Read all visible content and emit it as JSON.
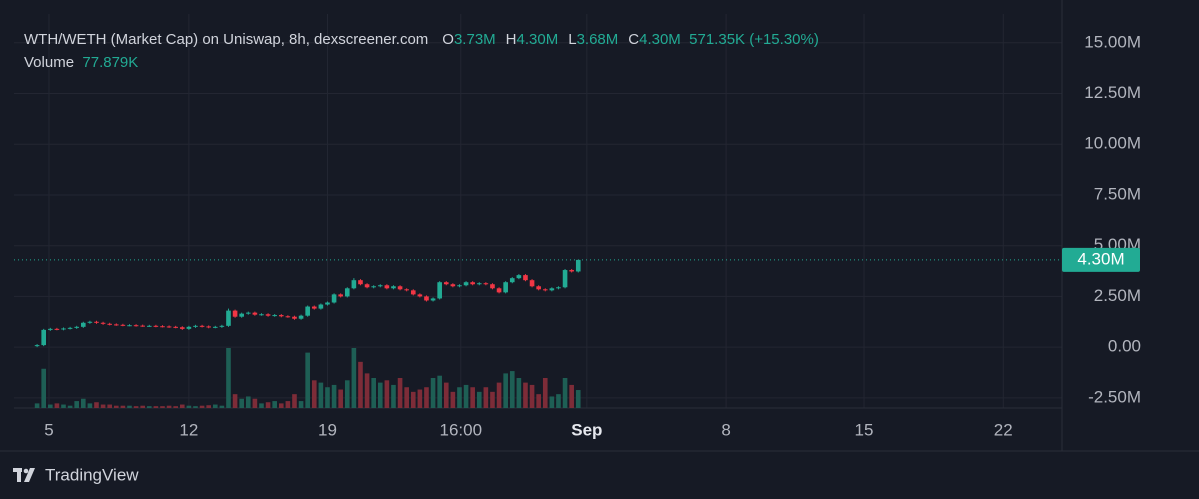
{
  "header": {
    "title": "WTH/WETH (Market Cap) on Uniswap, 8h, dexscreener.com",
    "items": [
      {
        "key": "O",
        "value": "3.73M"
      },
      {
        "key": "H",
        "value": "4.30M"
      },
      {
        "key": "L",
        "value": "3.68M"
      },
      {
        "key": "C",
        "value": "4.30M"
      }
    ],
    "change": "571.35K (+15.30%)",
    "volume_key": "Volume",
    "volume_value": "77.879K"
  },
  "chart_data": {
    "type": "candlestick",
    "up_color": "#22ab94",
    "down_color": "#f23645",
    "volume_up_color": "#1e5f55",
    "volume_down_color": "#7d2c38",
    "xlim": [
      -3.5,
      155.3
    ],
    "xticks": [
      {
        "value": 1.8,
        "label": "5"
      },
      {
        "value": 23,
        "label": "12"
      },
      {
        "value": 44,
        "label": "19"
      },
      {
        "value": 64.2,
        "label": "16:00"
      },
      {
        "value": 83.3,
        "label": "Sep",
        "bold": true
      },
      {
        "value": 104.4,
        "label": "8"
      },
      {
        "value": 125.3,
        "label": "15"
      },
      {
        "value": 146.4,
        "label": "22"
      }
    ],
    "ylim": [
      -3.0,
      16.42
    ],
    "yticks": [
      {
        "value": 15,
        "label": "15.00M"
      },
      {
        "value": 12.5,
        "label": "12.50M"
      },
      {
        "value": 10,
        "label": "10.00M"
      },
      {
        "value": 7.5,
        "label": "7.50M"
      },
      {
        "value": 5,
        "label": "5.00M"
      },
      {
        "value": 2.5,
        "label": "2.50M"
      },
      {
        "value": 0,
        "label": "0.00"
      },
      {
        "value": -2.5,
        "label": "-2.50M"
      }
    ],
    "grid": true,
    "last_label": "4.30M",
    "open": [
      0.05,
      0.1,
      0.85,
      0.9,
      0.88,
      0.92,
      0.95,
      1.0,
      1.2,
      1.25,
      1.2,
      1.15,
      1.12,
      1.1,
      1.08,
      1.08,
      1.06,
      1.05,
      1.05,
      1.03,
      1.02,
      1.0,
      0.98,
      0.9,
      1.0,
      1.05,
      1.02,
      0.98,
      1.0,
      1.05,
      1.8,
      1.5,
      1.65,
      1.7,
      1.6,
      1.62,
      1.55,
      1.58,
      1.52,
      1.5,
      1.4,
      1.55,
      2.0,
      1.9,
      2.1,
      2.2,
      2.6,
      2.5,
      2.9,
      3.3,
      3.1,
      2.95,
      3.0,
      3.05,
      2.9,
      3.0,
      2.85,
      2.8,
      2.6,
      2.5,
      2.3,
      2.4,
      3.2,
      3.1,
      3.0,
      3.05,
      3.2,
      3.1,
      3.15,
      3.1,
      2.9,
      2.7,
      3.2,
      3.4,
      3.55,
      3.3,
      3.0,
      2.85,
      2.8,
      2.9,
      2.95,
      3.8,
      3.73
    ],
    "high": [
      0.15,
      0.9,
      0.95,
      0.95,
      0.97,
      1.0,
      1.05,
      1.25,
      1.3,
      1.3,
      1.25,
      1.2,
      1.17,
      1.15,
      1.13,
      1.13,
      1.11,
      1.1,
      1.1,
      1.08,
      1.07,
      1.05,
      1.03,
      1.05,
      1.1,
      1.1,
      1.07,
      1.05,
      1.1,
      1.9,
      1.85,
      1.7,
      1.75,
      1.75,
      1.67,
      1.67,
      1.63,
      1.63,
      1.57,
      1.55,
      1.6,
      2.05,
      2.05,
      2.15,
      2.25,
      2.65,
      2.65,
      2.95,
      3.4,
      3.35,
      3.15,
      3.05,
      3.1,
      3.1,
      3.05,
      3.05,
      2.9,
      2.85,
      2.65,
      2.55,
      2.45,
      3.25,
      3.25,
      3.15,
      3.1,
      3.25,
      3.25,
      3.2,
      3.2,
      3.15,
      2.95,
      3.25,
      3.45,
      3.6,
      3.6,
      3.35,
      3.05,
      2.9,
      2.95,
      3.0,
      3.85,
      3.85,
      4.3
    ],
    "low": [
      0.0,
      0.05,
      0.8,
      0.83,
      0.83,
      0.87,
      0.9,
      0.95,
      1.15,
      1.15,
      1.1,
      1.07,
      1.05,
      1.03,
      1.03,
      1.01,
      1.0,
      1.0,
      0.98,
      0.97,
      0.95,
      0.93,
      0.85,
      0.85,
      0.95,
      0.97,
      0.93,
      0.93,
      0.95,
      1.0,
      1.45,
      1.45,
      1.6,
      1.55,
      1.55,
      1.5,
      1.5,
      1.47,
      1.45,
      1.35,
      1.35,
      1.5,
      1.85,
      1.85,
      2.05,
      2.15,
      2.45,
      2.45,
      2.85,
      3.05,
      2.9,
      2.9,
      2.95,
      2.85,
      2.85,
      2.8,
      2.75,
      2.55,
      2.45,
      2.25,
      2.25,
      2.35,
      3.05,
      2.95,
      2.95,
      3.0,
      3.05,
      3.05,
      3.05,
      2.85,
      2.65,
      2.65,
      3.15,
      3.35,
      3.25,
      2.95,
      2.8,
      2.75,
      2.75,
      2.85,
      2.9,
      3.68,
      3.68
    ],
    "close": [
      0.1,
      0.85,
      0.9,
      0.88,
      0.92,
      0.95,
      1.0,
      1.2,
      1.25,
      1.2,
      1.15,
      1.12,
      1.1,
      1.08,
      1.08,
      1.06,
      1.05,
      1.05,
      1.03,
      1.02,
      1.0,
      0.98,
      0.9,
      1.0,
      1.05,
      1.02,
      0.98,
      1.0,
      1.05,
      1.8,
      1.5,
      1.65,
      1.7,
      1.6,
      1.62,
      1.55,
      1.58,
      1.52,
      1.5,
      1.4,
      1.55,
      2.0,
      1.9,
      2.1,
      2.2,
      2.6,
      2.5,
      2.9,
      3.3,
      3.1,
      2.95,
      3.0,
      3.05,
      2.9,
      3.0,
      2.85,
      2.8,
      2.6,
      2.5,
      2.3,
      2.4,
      3.2,
      3.1,
      3.0,
      3.05,
      3.2,
      3.1,
      3.15,
      3.1,
      2.9,
      2.7,
      3.2,
      3.4,
      3.55,
      3.3,
      3.0,
      2.85,
      2.8,
      2.9,
      2.95,
      3.8,
      3.73,
      4.3
    ],
    "volume": [
      20,
      170,
      15,
      20,
      15,
      10,
      30,
      40,
      20,
      25,
      15,
      15,
      10,
      10,
      10,
      8,
      10,
      8,
      8,
      8,
      10,
      8,
      15,
      10,
      8,
      10,
      12,
      15,
      10,
      260,
      60,
      40,
      50,
      40,
      20,
      25,
      30,
      20,
      30,
      60,
      30,
      240,
      120,
      110,
      90,
      100,
      80,
      120,
      260,
      200,
      150,
      130,
      110,
      120,
      100,
      130,
      90,
      70,
      80,
      90,
      130,
      140,
      110,
      70,
      90,
      100,
      90,
      70,
      90,
      70,
      110,
      150,
      160,
      130,
      110,
      100,
      60,
      130,
      50,
      60,
      130,
      100,
      77.879
    ]
  },
  "footer": {
    "brand": "TradingView"
  }
}
